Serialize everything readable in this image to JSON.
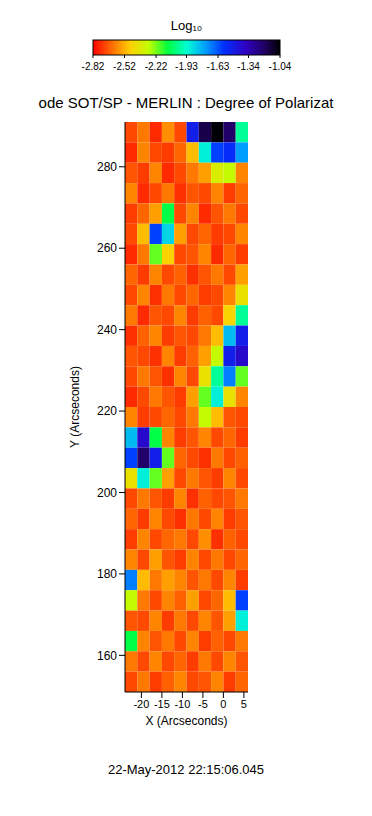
{
  "chart_data": {
    "type": "heatmap",
    "title": "ode SOT/SP - MERLIN : Degree of Polarizat",
    "x_label": "X (Arcseconds)",
    "y_label": "Y (Arcseconds)",
    "annotation": "22-May-2012 22:15:06.045",
    "xlim": [
      -24,
      6
    ],
    "xticks": [
      -20,
      -15,
      -10,
      -5,
      0,
      5
    ],
    "ylim": [
      151,
      291
    ],
    "yticks": [
      160,
      180,
      200,
      220,
      240,
      260,
      280
    ],
    "colorbar": {
      "title": "Log₁₀",
      "range": [
        -2.82,
        -1.04
      ],
      "ticks": [
        -2.82,
        -2.52,
        -2.22,
        -1.93,
        -1.63,
        -1.34,
        -1.04
      ]
    },
    "x": [
      -22.5,
      -19.5,
      -16.5,
      -13.5,
      -10.5,
      -7.5,
      -4.5,
      -1.5,
      1.5,
      4.5
    ],
    "y": [
      288.5,
      283.5,
      278.5,
      273.5,
      268.5,
      263.5,
      258.5,
      253.5,
      248.5,
      243.5,
      238.5,
      233.5,
      228.5,
      223.5,
      218.5,
      213.5,
      208.5,
      203.5,
      198.5,
      193.5,
      188.5,
      183.5,
      178.5,
      173.5,
      168.5,
      163.5,
      158.5,
      153.5
    ],
    "cells": [
      [
        -2.7,
        -2.62,
        -2.75,
        -2.58,
        -2.7,
        -1.5,
        -1.15,
        -1.05,
        -1.2,
        -2.0
      ],
      [
        -2.75,
        -2.6,
        -2.7,
        -2.72,
        -2.65,
        -2.5,
        -1.9,
        -1.6,
        -1.55,
        -1.75
      ],
      [
        -2.68,
        -2.72,
        -2.6,
        -2.75,
        -2.7,
        -2.62,
        -2.55,
        -2.35,
        -2.3,
        -2.6
      ],
      [
        -2.6,
        -2.75,
        -2.7,
        -2.62,
        -2.74,
        -2.68,
        -2.7,
        -2.6,
        -2.72,
        -2.65
      ],
      [
        -2.72,
        -2.65,
        -2.55,
        -2.1,
        -2.7,
        -2.6,
        -2.75,
        -2.68,
        -2.62,
        -2.7
      ],
      [
        -2.7,
        -2.5,
        -1.6,
        -1.85,
        -2.55,
        -2.7,
        -2.65,
        -2.72,
        -2.7,
        -2.6
      ],
      [
        -2.75,
        -2.62,
        -2.2,
        -2.45,
        -2.7,
        -2.68,
        -2.6,
        -2.75,
        -2.65,
        -2.72
      ],
      [
        -2.65,
        -2.72,
        -2.6,
        -2.7,
        -2.66,
        -2.74,
        -2.68,
        -2.62,
        -2.7,
        -2.55
      ],
      [
        -2.7,
        -2.6,
        -2.74,
        -2.62,
        -2.7,
        -2.65,
        -2.72,
        -2.7,
        -2.6,
        -2.4
      ],
      [
        -2.62,
        -2.75,
        -2.68,
        -2.7,
        -2.6,
        -2.72,
        -2.66,
        -2.7,
        -2.45,
        -2.0
      ],
      [
        -2.74,
        -2.66,
        -2.6,
        -2.72,
        -2.68,
        -2.7,
        -2.62,
        -2.5,
        -1.8,
        -1.5
      ],
      [
        -2.68,
        -2.7,
        -2.74,
        -2.6,
        -2.72,
        -2.66,
        -2.55,
        -2.3,
        -1.5,
        -1.4
      ],
      [
        -2.7,
        -2.62,
        -2.68,
        -2.74,
        -2.6,
        -2.7,
        -2.4,
        -2.0,
        -1.7,
        -2.2
      ],
      [
        -2.75,
        -2.7,
        -2.62,
        -2.68,
        -2.72,
        -2.55,
        -2.2,
        -1.9,
        -2.4,
        -2.6
      ],
      [
        -2.6,
        -2.72,
        -2.7,
        -2.65,
        -2.7,
        -2.62,
        -2.3,
        -2.5,
        -2.68,
        -2.7
      ],
      [
        -1.8,
        -1.4,
        -2.1,
        -2.6,
        -2.72,
        -2.68,
        -2.6,
        -2.7,
        -2.65,
        -2.72
      ],
      [
        -1.6,
        -1.2,
        -1.5,
        -2.2,
        -2.65,
        -2.7,
        -2.74,
        -2.62,
        -2.7,
        -2.66
      ],
      [
        -2.4,
        -1.9,
        -2.2,
        -2.55,
        -2.7,
        -2.62,
        -2.68,
        -2.72,
        -2.6,
        -2.7
      ],
      [
        -2.7,
        -2.62,
        -2.68,
        -2.72,
        -2.6,
        -2.74,
        -2.66,
        -2.7,
        -2.68,
        -2.62
      ],
      [
        -2.65,
        -2.72,
        -2.6,
        -2.7,
        -2.74,
        -2.62,
        -2.7,
        -2.6,
        -2.72,
        -2.68
      ],
      [
        -2.72,
        -2.6,
        -2.7,
        -2.65,
        -2.62,
        -2.7,
        -2.58,
        -2.74,
        -2.66,
        -2.7
      ],
      [
        -2.6,
        -2.7,
        -2.55,
        -2.68,
        -2.72,
        -2.6,
        -2.7,
        -2.62,
        -2.7,
        -2.65
      ],
      [
        -1.7,
        -2.5,
        -2.62,
        -2.55,
        -2.6,
        -2.68,
        -2.62,
        -2.7,
        -2.6,
        -2.72
      ],
      [
        -2.3,
        -2.62,
        -2.7,
        -2.6,
        -2.66,
        -2.55,
        -2.7,
        -2.65,
        -2.5,
        -1.6
      ],
      [
        -2.68,
        -2.7,
        -2.6,
        -2.72,
        -2.62,
        -2.7,
        -2.6,
        -2.68,
        -2.55,
        -1.9
      ],
      [
        -2.1,
        -2.6,
        -2.68,
        -2.62,
        -2.7,
        -2.6,
        -2.72,
        -2.66,
        -2.7,
        -2.62
      ],
      [
        -2.62,
        -2.7,
        -2.6,
        -2.7,
        -2.65,
        -2.72,
        -2.62,
        -2.7,
        -2.6,
        -2.68
      ],
      [
        -2.7,
        -2.62,
        -2.72,
        -2.66,
        -2.6,
        -2.7,
        -2.68,
        -2.6,
        -2.72,
        -2.65
      ]
    ]
  }
}
